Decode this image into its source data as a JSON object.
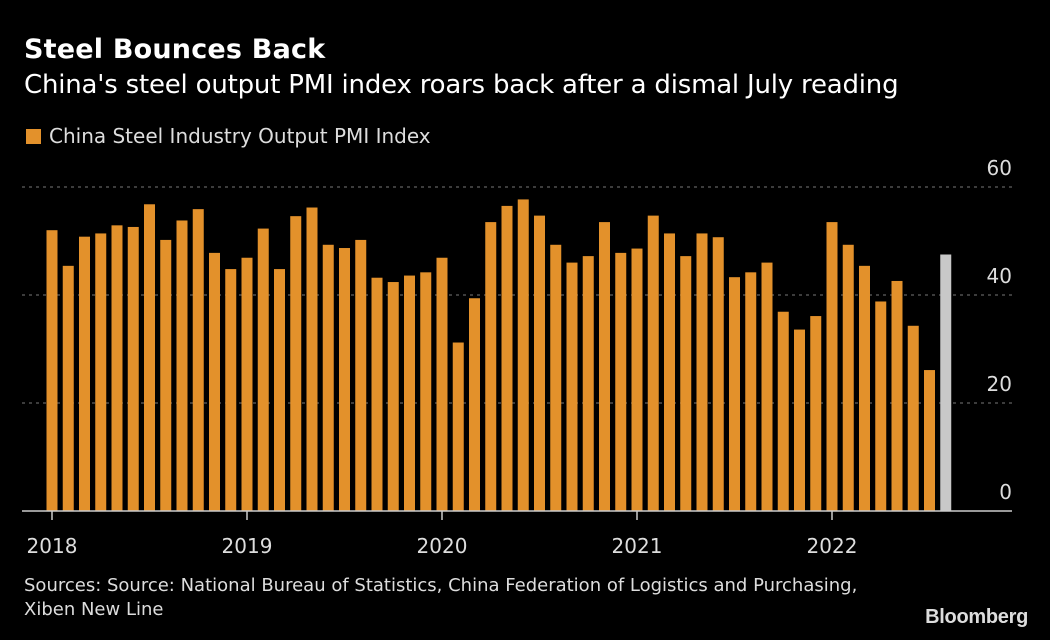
{
  "header": {
    "title": "Steel Bounces Back",
    "subtitle": "China's steel output PMI index roars back after a dismal July reading"
  },
  "legend": {
    "label": "China Steel Industry Output PMI Index",
    "color": "#E3912B"
  },
  "footer": {
    "source": "Sources: Source: National Bureau of Statistics, China Federation of Logistics and Purchasing, Xiben New Line",
    "brand": "Bloomberg"
  },
  "chart_data": {
    "type": "bar",
    "title": "Steel Bounces Back",
    "subtitle": "China's steel output PMI index roars back after a dismal July reading",
    "xlabel": "",
    "ylabel": "",
    "ylim": [
      0,
      60
    ],
    "yticks": [
      0,
      20,
      40,
      60
    ],
    "ytick_labels": [
      "0",
      "20",
      "40",
      "60"
    ],
    "y_axis_position": "right",
    "grid": true,
    "legend_position": "top-left",
    "x_tick_labels": [
      "2018",
      "2019",
      "2020",
      "2021",
      "2022"
    ],
    "highlight_color": "#C8C8C8",
    "bar_color": "#E3912B",
    "categories": [
      "2018-01",
      "2018-02",
      "2018-03",
      "2018-04",
      "2018-05",
      "2018-06",
      "2018-07",
      "2018-08",
      "2018-09",
      "2018-10",
      "2018-11",
      "2018-12",
      "2019-01",
      "2019-02",
      "2019-03",
      "2019-04",
      "2019-05",
      "2019-06",
      "2019-07",
      "2019-08",
      "2019-09",
      "2019-10",
      "2019-11",
      "2019-12",
      "2020-01",
      "2020-02",
      "2020-03",
      "2020-04",
      "2020-05",
      "2020-06",
      "2020-07",
      "2020-08",
      "2020-09",
      "2020-10",
      "2020-11",
      "2020-12",
      "2021-01",
      "2021-02",
      "2021-03",
      "2021-04",
      "2021-05",
      "2021-06",
      "2021-07",
      "2021-08",
      "2021-09",
      "2021-10",
      "2021-11",
      "2021-12",
      "2022-01",
      "2022-02",
      "2022-03",
      "2022-04",
      "2022-05",
      "2022-06",
      "2022-07",
      "2022-08"
    ],
    "series": [
      {
        "name": "China Steel Industry Output PMI Index",
        "values": [
          52.0,
          45.4,
          50.8,
          51.4,
          52.9,
          52.6,
          56.8,
          50.2,
          53.8,
          55.9,
          47.8,
          44.8,
          46.9,
          52.3,
          44.8,
          54.6,
          56.2,
          49.3,
          48.7,
          50.2,
          43.2,
          42.4,
          43.6,
          44.2,
          46.9,
          31.2,
          39.4,
          53.5,
          56.5,
          57.7,
          54.7,
          49.3,
          46.0,
          47.2,
          53.5,
          47.8,
          48.6,
          54.7,
          51.4,
          47.2,
          51.4,
          50.7,
          43.3,
          44.2,
          46.0,
          36.9,
          33.6,
          36.1,
          53.5,
          49.3,
          45.4,
          38.8,
          42.6,
          34.3,
          26.1,
          47.5
        ],
        "highlight_last": true
      }
    ]
  }
}
